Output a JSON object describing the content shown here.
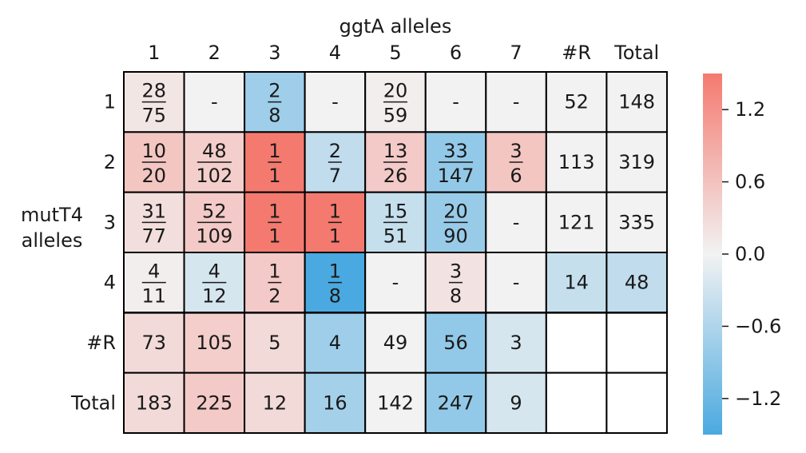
{
  "chart_data": {
    "type": "heatmap",
    "title": "ggtA alleles",
    "ylabel_lines": [
      "mutT4",
      "alleles"
    ],
    "col_labels": [
      "1",
      "2",
      "3",
      "4",
      "5",
      "6",
      "7",
      "#R",
      "Total"
    ],
    "row_labels": [
      "1",
      "2",
      "3",
      "4",
      "#R",
      "Total"
    ],
    "cells": [
      [
        {
          "num": "28",
          "den": "75",
          "v": 0.15
        },
        {
          "text": "-",
          "v": 0
        },
        {
          "num": "2",
          "den": "8",
          "v": -0.75
        },
        {
          "text": "-",
          "v": 0
        },
        {
          "num": "20",
          "den": "59",
          "v": 0.05
        },
        {
          "text": "-",
          "v": 0
        },
        {
          "text": "-",
          "v": 0
        },
        {
          "text": "52",
          "v": 0
        },
        {
          "text": "148",
          "v": 0
        }
      ],
      [
        {
          "num": "10",
          "den": "20",
          "v": 0.55
        },
        {
          "num": "48",
          "den": "102",
          "v": 0.45
        },
        {
          "num": "1",
          "den": "1",
          "v": 1.5
        },
        {
          "num": "2",
          "den": "7",
          "v": -0.45
        },
        {
          "num": "13",
          "den": "26",
          "v": 0.5
        },
        {
          "num": "33",
          "den": "147",
          "v": -0.85
        },
        {
          "num": "3",
          "den": "6",
          "v": 0.55
        },
        {
          "text": "113",
          "v": 0
        },
        {
          "text": "319",
          "v": 0
        }
      ],
      [
        {
          "num": "31",
          "den": "77",
          "v": 0.25
        },
        {
          "num": "52",
          "den": "109",
          "v": 0.5
        },
        {
          "num": "1",
          "den": "1",
          "v": 1.5
        },
        {
          "num": "1",
          "den": "1",
          "v": 1.5
        },
        {
          "num": "15",
          "den": "51",
          "v": -0.4
        },
        {
          "num": "20",
          "den": "90",
          "v": -0.8
        },
        {
          "text": "-",
          "v": 0
        },
        {
          "text": "121",
          "v": 0
        },
        {
          "text": "335",
          "v": 0
        }
      ],
      [
        {
          "num": "4",
          "den": "11",
          "v": 0.05
        },
        {
          "num": "4",
          "den": "12",
          "v": -0.25
        },
        {
          "num": "1",
          "den": "2",
          "v": 0.5
        },
        {
          "num": "1",
          "den": "8",
          "v": -1.5
        },
        {
          "text": "-",
          "v": 0
        },
        {
          "num": "3",
          "den": "8",
          "v": 0.2
        },
        {
          "text": "-",
          "v": 0
        },
        {
          "text": "14",
          "v": -0.4
        },
        {
          "text": "48",
          "v": -0.45
        }
      ],
      [
        {
          "text": "73",
          "v": 0.3
        },
        {
          "text": "105",
          "v": 0.45
        },
        {
          "text": "5",
          "v": 0.3
        },
        {
          "text": "4",
          "v": -0.75
        },
        {
          "text": "49",
          "v": 0
        },
        {
          "text": "56",
          "v": -0.85
        },
        {
          "text": "3",
          "v": -0.25
        },
        {
          "text": "",
          "v": null
        },
        {
          "text": "",
          "v": null
        }
      ],
      [
        {
          "text": "183",
          "v": 0.3
        },
        {
          "text": "225",
          "v": 0.5
        },
        {
          "text": "12",
          "v": 0.3
        },
        {
          "text": "16",
          "v": -0.7
        },
        {
          "text": "142",
          "v": 0
        },
        {
          "text": "247",
          "v": -0.85
        },
        {
          "text": "9",
          "v": -0.25
        },
        {
          "text": "",
          "v": null
        },
        {
          "text": "",
          "v": null
        }
      ]
    ],
    "colorbar": {
      "range": [
        -1.5,
        1.5
      ],
      "ticks": [
        1.2,
        0.6,
        0.0,
        -0.6,
        -1.2
      ],
      "tick_labels": [
        "1.2",
        "0.6",
        "0.0",
        "−0.6",
        "−1.2"
      ]
    },
    "colors": {
      "positive": "#f47a70",
      "neutral": "#f2f2f2",
      "negative": "#4aa9e0"
    },
    "grid": true
  }
}
